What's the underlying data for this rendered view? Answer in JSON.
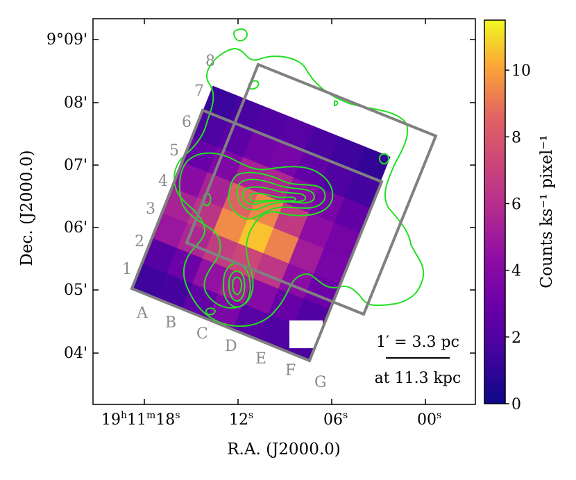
{
  "chart_data": {
    "type": "heatmap",
    "title": "",
    "xlabel": "R.A. (J2000.0)",
    "ylabel": "Dec. (J2000.0)",
    "colorbar": {
      "label": "Counts ks⁻¹ pixel⁻¹",
      "ticks": [
        "0",
        "2",
        "4",
        "6",
        "8",
        "10"
      ],
      "range": [
        0,
        11.5
      ]
    },
    "x_ticks": [
      {
        "h": "19",
        "hs": "h",
        "m": "11",
        "ms": "m",
        "s": "18",
        "ss": "s"
      },
      {
        "s": "12",
        "ss": "s"
      },
      {
        "s": "06",
        "ss": "s"
      },
      {
        "s": "00",
        "ss": "s"
      }
    ],
    "y_ticks": [
      "9°09'",
      "08'",
      "07'",
      "06'",
      "05'",
      "04'"
    ],
    "grid_row_labels": [
      "1",
      "2",
      "3",
      "4",
      "5",
      "6",
      "7",
      "8"
    ],
    "grid_col_labels": [
      "A",
      "B",
      "C",
      "D",
      "E",
      "F",
      "G"
    ],
    "grid_values": [
      [
        1.4,
        1.7,
        2.6,
        3.6,
        2.3,
        2.0,
        1.8
      ],
      [
        2.2,
        3.0,
        4.5,
        5.2,
        4.0,
        2.8,
        2.1
      ],
      [
        4.8,
        5.6,
        6.7,
        7.2,
        6.4,
        4.2,
        3.0
      ],
      [
        5.4,
        6.3,
        9.5,
        10.6,
        9.3,
        5.1,
        3.4
      ],
      [
        4.2,
        5.4,
        8.5,
        9.4,
        6.6,
        4.3,
        3.3
      ],
      [
        2.8,
        3.7,
        5.3,
        5.6,
        4.3,
        3.5,
        2.6
      ],
      [
        1.9,
        2.4,
        3.2,
        3.4,
        2.6,
        2.0,
        1.6
      ],
      [
        1.3,
        1.8,
        2.1,
        2.3,
        1.8,
        1.4,
        1.1
      ]
    ],
    "scale_bar": {
      "line1": "1′ = 3.3 pc",
      "line2": "at 11.3 kpc"
    }
  }
}
